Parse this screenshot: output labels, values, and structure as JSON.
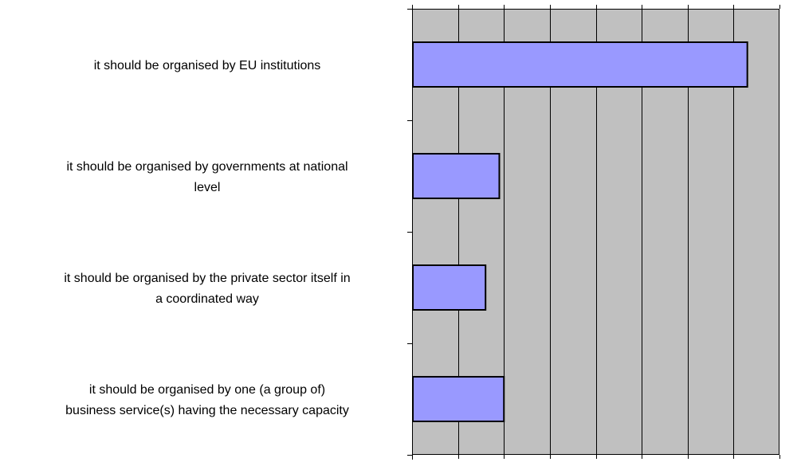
{
  "chart_data": {
    "type": "bar",
    "orientation": "horizontal",
    "categories": [
      [
        "it should be organised by EU institutions"
      ],
      [
        "it should be organised by governments at national",
        "level"
      ],
      [
        "it should be organised by the private sector itself in",
        "a coordinated way"
      ],
      [
        "it should be organised by one (a group of)",
        "business service(s) having the necessary capacity"
      ]
    ],
    "values": [
      7.3,
      1.9,
      1.6,
      2.0
    ],
    "xlim": [
      0,
      8
    ],
    "x_gridlines": [
      1,
      2,
      3,
      4,
      5,
      6,
      7
    ],
    "x_tick_labels": "none",
    "grid": true,
    "legend": "none",
    "colors": {
      "plot_background": "#c0c0c0",
      "bar_fill": "#9999ff",
      "bar_stroke": "#000000",
      "gridline": "#000000",
      "axis": "#000000"
    }
  }
}
